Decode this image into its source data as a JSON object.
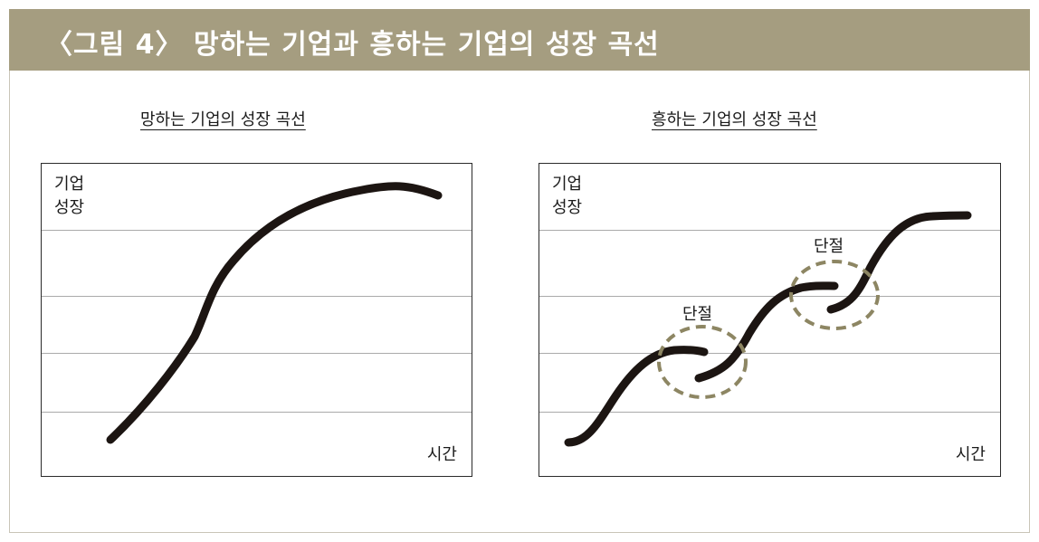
{
  "header": {
    "title": "〈그림 4〉 망하는 기업과 흥하는 기업의 성장 곡선"
  },
  "left_panel": {
    "title": "망하는 기업의 성장 곡선",
    "y_label_line1": "기업",
    "y_label_line2": "성장",
    "x_label": "시간"
  },
  "right_panel": {
    "title": "흥하는 기업의 성장 곡선",
    "y_label_line1": "기업",
    "y_label_line2": "성장",
    "x_label": "시간",
    "annotations": [
      {
        "label": "단절"
      },
      {
        "label": "단절"
      }
    ]
  },
  "colors": {
    "header_bg": "#a59d80",
    "curve": "#1c1512",
    "circle": "#8d8663",
    "gridline": "#aaaaaa"
  }
}
